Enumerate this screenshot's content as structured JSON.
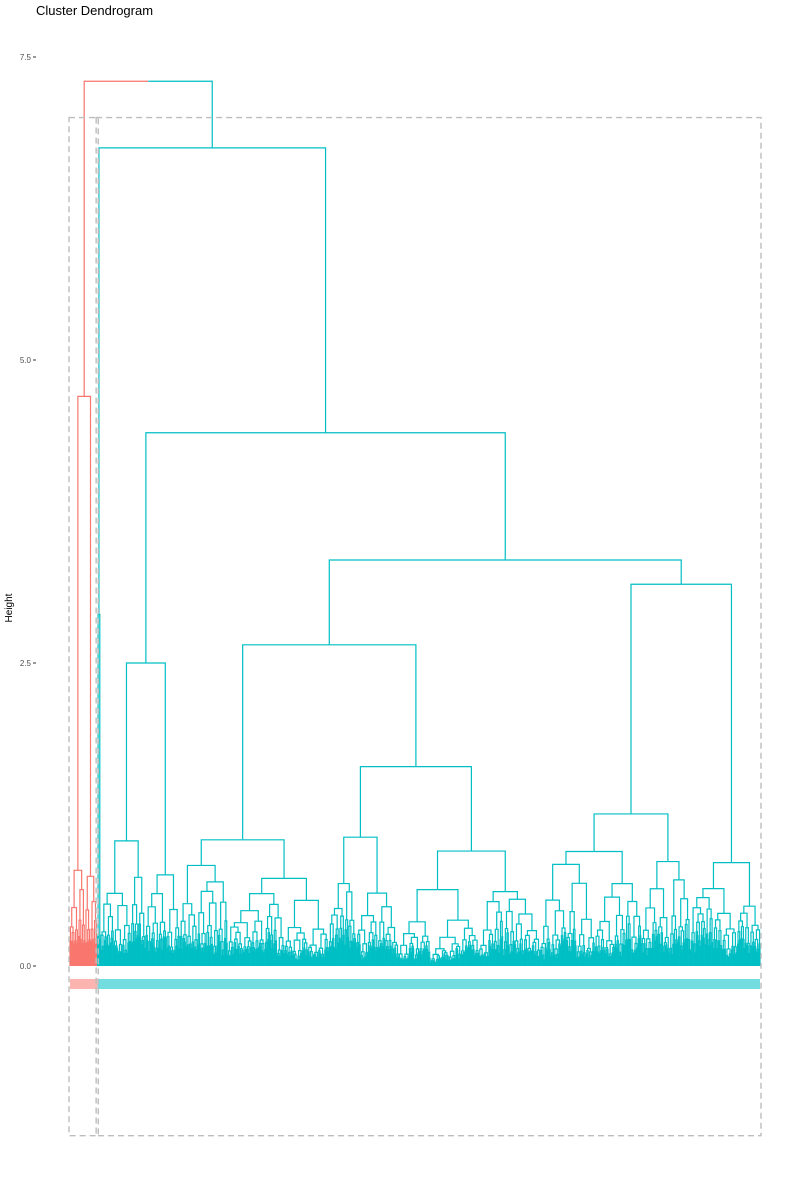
{
  "chart_data": {
    "type": "dendrogram",
    "title": "Cluster Dendrogram",
    "xlabel": "",
    "ylabel": "Height",
    "ylim": [
      -1.4,
      7.5
    ],
    "y_ticks": [
      {
        "value": 0.0,
        "label": "0.0"
      },
      {
        "value": 2.5,
        "label": "2.5"
      },
      {
        "value": 5.0,
        "label": "5.0"
      },
      {
        "value": 7.5,
        "label": "7.5"
      }
    ],
    "grid": false,
    "root_height": 7.3,
    "leaf_count": 800,
    "clusters": [
      {
        "id": 1,
        "color": "#F8766D",
        "leaf_share": 0.04,
        "merge_height": 4.7
      },
      {
        "id": 2,
        "color": "#00BFC4",
        "leaf_share": 0.96,
        "merge_height": 6.75
      }
    ],
    "cluster2_top_merges": [
      {
        "height": 6.75
      },
      {
        "height": 4.4
      },
      {
        "height": 3.35
      },
      {
        "height": 3.15
      },
      {
        "height": 2.65
      },
      {
        "height": 2.5
      },
      {
        "height": 2.5
      },
      {
        "height": 2.3
      },
      {
        "height": 2.2
      },
      {
        "height": 2.0
      }
    ],
    "cluster_rect_bottom": -1.4,
    "cluster_rect_top": 7.0
  }
}
